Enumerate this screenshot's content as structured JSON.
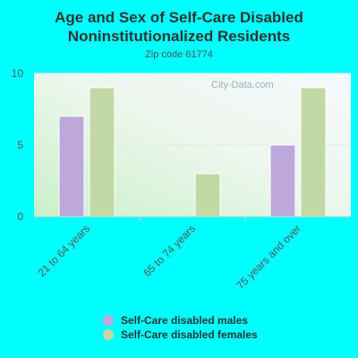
{
  "title_line1": "Age and Sex of Self-Care Disabled",
  "title_line2": "Noninstitutionalized Residents",
  "subtitle": "Zip code 61774",
  "watermark": "City-Data.com",
  "colors": {
    "background": "#00ffff",
    "males": "#bda7db",
    "females": "#c2d9a5",
    "axis_text": "#555555"
  },
  "chart_data": {
    "type": "bar",
    "title": "Age and Sex of Self-Care Disabled Noninstitutionalized Residents",
    "subtitle": "Zip code 61774",
    "categories": [
      "21 to 64 years",
      "65 to 74 years",
      "75 years and over"
    ],
    "series": [
      {
        "name": "Self-Care disabled males",
        "values": [
          7,
          0,
          5
        ]
      },
      {
        "name": "Self-Care disabled females",
        "values": [
          9,
          3,
          9
        ]
      }
    ],
    "ylim": [
      0,
      10
    ],
    "yticks": [
      0,
      5,
      10
    ],
    "grid": true,
    "legend_position": "bottom"
  }
}
